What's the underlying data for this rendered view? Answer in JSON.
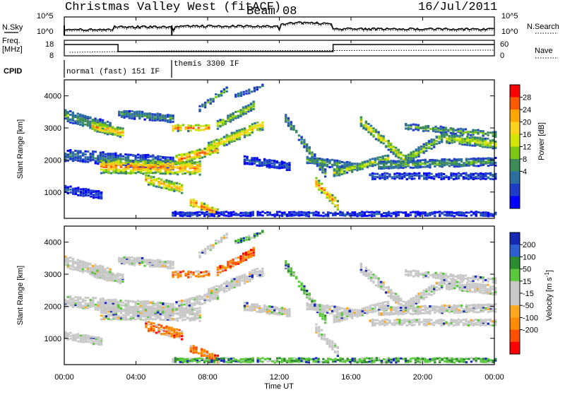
{
  "header": {
    "title": "Christmas Valley West (fitACF)",
    "beam": "Beam 08",
    "date": "16/Jul/2011"
  },
  "noise_panel": {
    "left_label": "N.Sky",
    "right_label": "N.Search",
    "ticks": [
      "10^5",
      "10^0"
    ],
    "right_ticks": [
      "10^5",
      "10^0"
    ]
  },
  "freq_panel": {
    "left_label_line1": "Freq.",
    "left_label_line2": "[MHz]",
    "left_ticks": [
      "18",
      "8"
    ],
    "right_label": "Nave",
    "right_ticks": [
      "60",
      "0"
    ]
  },
  "cpid": {
    "label": "CPID",
    "segments": [
      {
        "start_hour": 0,
        "end_hour": 6,
        "text": "normal (fast) 151 IF"
      },
      {
        "start_hour": 6,
        "end_hour": 24,
        "text": "themis 3300 IF"
      }
    ]
  },
  "chart_data": [
    {
      "type": "heatmap",
      "name": "power",
      "ylabel": "Slant Range [km]",
      "yticks": [
        1000,
        2000,
        3000,
        4000
      ],
      "ylim": [
        180,
        4500
      ],
      "xlim_hours": [
        0,
        24
      ],
      "colorbar": {
        "label": "Power [dB]",
        "ticks": [
          "28",
          "24",
          "20",
          "16",
          "12",
          "8",
          "4"
        ],
        "colors": [
          "#ff0000",
          "#ff5a00",
          "#ffa500",
          "#ffd21e",
          "#d2e600",
          "#7dc814",
          "#3c8c5a",
          "#2d6ea0",
          "#1e3cc8",
          "#0000ff"
        ]
      }
    },
    {
      "type": "heatmap",
      "name": "velocity",
      "ylabel": "Slant Range [km]",
      "yticks": [
        1000,
        2000,
        3000,
        4000
      ],
      "ylim": [
        180,
        4500
      ],
      "xlim_hours": [
        0,
        24
      ],
      "xticks": [
        "00:00",
        "04:00",
        "08:00",
        "12:00",
        "16:00",
        "20:00",
        "00:00"
      ],
      "xlabel": "Time UT",
      "colorbar": {
        "label": "Velocity [m s^-1]",
        "ticks": [
          "200",
          "100",
          "50",
          "15",
          "-15",
          "-50",
          "-100",
          "-200"
        ],
        "colors": [
          "#1428b4",
          "#2d5fd2",
          "#2d8c2d",
          "#5ac83c",
          "#c8c8c8",
          "#c8c8c8",
          "#ffaa1e",
          "#ff8c00",
          "#ff5000",
          "#ff0000"
        ]
      }
    }
  ],
  "colors": {
    "frame": "#000000",
    "ground_scatter": "#c8c8c8",
    "background": "#ffffff"
  }
}
